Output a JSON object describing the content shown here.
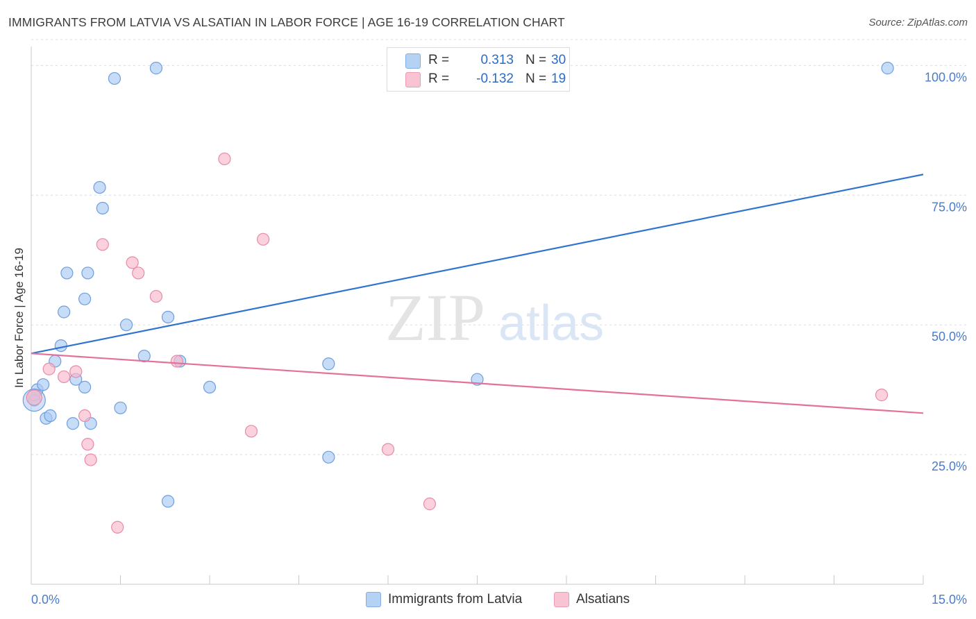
{
  "chart_data": {
    "type": "scatter",
    "title": "IMMIGRANTS FROM LATVIA VS ALSATIAN IN LABOR FORCE | AGE 16-19 CORRELATION CHART",
    "source": "Source: ZipAtlas.com",
    "xlabel": "",
    "ylabel": "In Labor Force | Age 16-19",
    "xlim": [
      0,
      15
    ],
    "ylim": [
      0,
      105
    ],
    "x_tick_labels": [
      "0.0%",
      "15.0%"
    ],
    "y_ticks": [
      25,
      50,
      75,
      100
    ],
    "y_tick_labels": [
      "25.0%",
      "50.0%",
      "75.0%",
      "100.0%"
    ],
    "grid": true,
    "watermark": "ZIPatlas",
    "legend": {
      "r_label": "R =",
      "n_label": "N =",
      "entries": [
        {
          "name": "Immigrants from Latvia",
          "r": "0.313",
          "n": "30",
          "color": "#a9c9f2",
          "stroke": "#6d9ee0"
        },
        {
          "name": "Alsatians",
          "r": "-0.132",
          "n": "19",
          "color": "#f7b9cb",
          "stroke": "#e98aa6"
        }
      ]
    },
    "series": [
      {
        "name": "Immigrants from Latvia",
        "color": "#a9c9f2",
        "stroke": "#6d9ee0",
        "line_color": "#2f74d0",
        "trend": [
          [
            0,
            44.5
          ],
          [
            15,
            79
          ]
        ],
        "points": [
          [
            0.05,
            35.5
          ],
          [
            0.1,
            37.5
          ],
          [
            0.2,
            38.5
          ],
          [
            0.25,
            32
          ],
          [
            0.32,
            32.5
          ],
          [
            0.4,
            43
          ],
          [
            0.5,
            46
          ],
          [
            0.55,
            52.5
          ],
          [
            0.6,
            60
          ],
          [
            0.7,
            31
          ],
          [
            0.75,
            39.5
          ],
          [
            0.9,
            55
          ],
          [
            0.9,
            38
          ],
          [
            0.95,
            60
          ],
          [
            1.0,
            31
          ],
          [
            1.15,
            76.5
          ],
          [
            1.2,
            72.5
          ],
          [
            1.4,
            97.5
          ],
          [
            1.5,
            34
          ],
          [
            1.6,
            50
          ],
          [
            1.9,
            44
          ],
          [
            2.1,
            99.5
          ],
          [
            2.3,
            16
          ],
          [
            2.3,
            51.5
          ],
          [
            2.5,
            43
          ],
          [
            3.0,
            38
          ],
          [
            5.0,
            42.5
          ],
          [
            5.0,
            24.5
          ],
          [
            7.5,
            39.5
          ],
          [
            14.4,
            99.5
          ]
        ]
      },
      {
        "name": "Alsatians",
        "color": "#f7b9cb",
        "stroke": "#e98aa6",
        "line_color": "#e4719a",
        "trend": [
          [
            0,
            44.5
          ],
          [
            15,
            33
          ]
        ],
        "points": [
          [
            0.05,
            36.5
          ],
          [
            0.3,
            41.5
          ],
          [
            0.55,
            40
          ],
          [
            0.75,
            41
          ],
          [
            0.9,
            32.5
          ],
          [
            0.95,
            27
          ],
          [
            1.0,
            24
          ],
          [
            1.2,
            65.5
          ],
          [
            1.45,
            11
          ],
          [
            1.7,
            62
          ],
          [
            1.8,
            60
          ],
          [
            2.1,
            55.5
          ],
          [
            2.45,
            43
          ],
          [
            3.25,
            82
          ],
          [
            3.7,
            29.5
          ],
          [
            3.9,
            66.5
          ],
          [
            6.0,
            26
          ],
          [
            6.7,
            15.5
          ],
          [
            14.3,
            36.5
          ]
        ]
      }
    ]
  }
}
